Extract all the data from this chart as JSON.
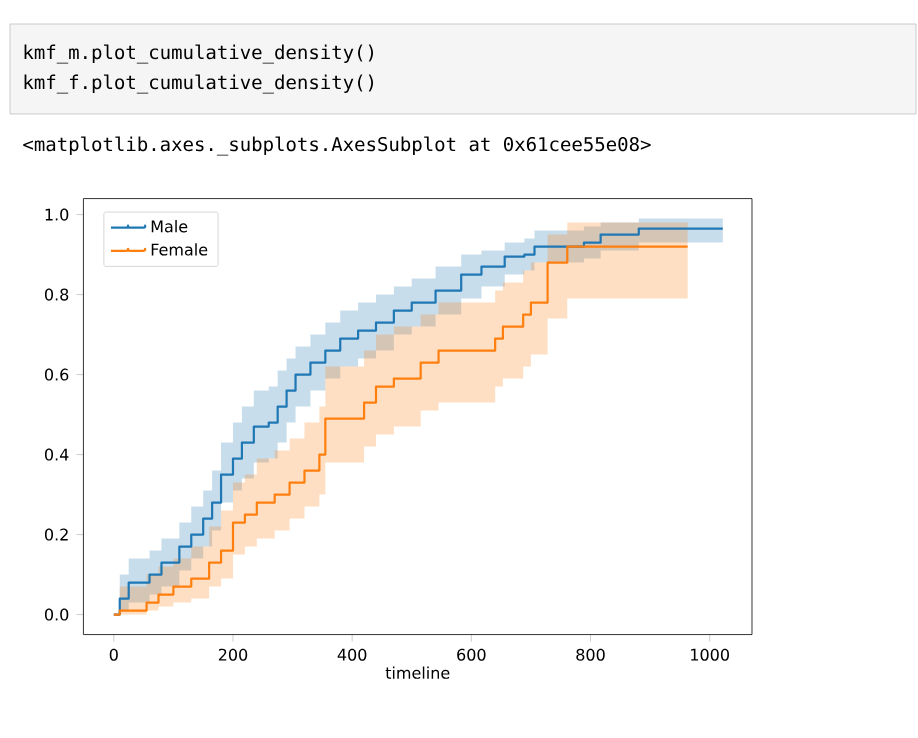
{
  "chart_data": {
    "type": "step",
    "xlabel": "timeline",
    "legend": "top left",
    "grid": false,
    "annotations": [
      "kmf_m.plot_cumulative_density()",
      "kmf_f.plot_cumulative_density()",
      "<matplotlib.axes._subplots.AxesSubplot at 0x61cee55e08>"
    ],
    "xlim": [
      -51,
      1071
    ],
    "ylim": [
      -0.05,
      1.04
    ],
    "xticks": [
      0,
      200,
      400,
      600,
      800,
      1000
    ],
    "yticks": [
      {
        "value": 0,
        "label": "0.0"
      },
      {
        "value": 0.2,
        "label": "0.2"
      },
      {
        "value": 0.4,
        "label": "0.4"
      },
      {
        "value": 0.6,
        "label": "0.6"
      },
      {
        "value": 0.8,
        "label": "0.8"
      },
      {
        "value": 1.0,
        "label": "1.0"
      }
    ],
    "series": [
      {
        "name": "Male",
        "color": "#1f77b4",
        "x": [
          0,
          10,
          25,
          60,
          80,
          110,
          130,
          150,
          165,
          180,
          200,
          215,
          235,
          260,
          275,
          290,
          305,
          330,
          355,
          380,
          410,
          440,
          470,
          500,
          540,
          583,
          617,
          656,
          689,
          706,
          789,
          817,
          881,
          1022
        ],
        "values": [
          0,
          0.04,
          0.08,
          0.1,
          0.13,
          0.17,
          0.2,
          0.24,
          0.28,
          0.35,
          0.39,
          0.43,
          0.47,
          0.48,
          0.52,
          0.56,
          0.6,
          0.63,
          0.66,
          0.69,
          0.71,
          0.73,
          0.76,
          0.78,
          0.81,
          0.85,
          0.87,
          0.895,
          0.9,
          0.92,
          0.93,
          0.95,
          0.965,
          0.965
        ],
        "upper": [
          0,
          0.1,
          0.14,
          0.16,
          0.19,
          0.23,
          0.27,
          0.31,
          0.36,
          0.43,
          0.48,
          0.52,
          0.56,
          0.57,
          0.61,
          0.64,
          0.67,
          0.7,
          0.73,
          0.76,
          0.78,
          0.8,
          0.82,
          0.84,
          0.87,
          0.9,
          0.91,
          0.93,
          0.94,
          0.96,
          0.97,
          0.98,
          0.99,
          0.99
        ],
        "lower": [
          0,
          0.01,
          0.03,
          0.05,
          0.07,
          0.11,
          0.14,
          0.17,
          0.21,
          0.28,
          0.31,
          0.34,
          0.38,
          0.39,
          0.43,
          0.48,
          0.52,
          0.56,
          0.59,
          0.62,
          0.64,
          0.66,
          0.7,
          0.72,
          0.75,
          0.79,
          0.82,
          0.85,
          0.86,
          0.88,
          0.89,
          0.91,
          0.93,
          0.93
        ]
      },
      {
        "name": "Female",
        "color": "#ff7f0e",
        "x": [
          0,
          10,
          55,
          75,
          100,
          130,
          160,
          180,
          200,
          220,
          240,
          270,
          295,
          320,
          345,
          355,
          420,
          440,
          470,
          515,
          545,
          640,
          653,
          687,
          700,
          728,
          761,
          963
        ],
        "values": [
          0,
          0.01,
          0.03,
          0.05,
          0.07,
          0.09,
          0.13,
          0.16,
          0.23,
          0.25,
          0.28,
          0.3,
          0.33,
          0.36,
          0.4,
          0.49,
          0.53,
          0.57,
          0.59,
          0.63,
          0.66,
          0.69,
          0.72,
          0.75,
          0.78,
          0.88,
          0.92,
          0.92
        ],
        "upper": [
          0,
          0.07,
          0.1,
          0.12,
          0.14,
          0.17,
          0.22,
          0.26,
          0.33,
          0.35,
          0.39,
          0.41,
          0.44,
          0.48,
          0.52,
          0.62,
          0.66,
          0.7,
          0.72,
          0.75,
          0.78,
          0.81,
          0.83,
          0.86,
          0.88,
          0.95,
          0.98,
          0.98
        ],
        "lower": [
          0,
          0.0,
          0.01,
          0.02,
          0.03,
          0.04,
          0.07,
          0.09,
          0.15,
          0.17,
          0.19,
          0.21,
          0.24,
          0.27,
          0.3,
          0.38,
          0.42,
          0.45,
          0.47,
          0.51,
          0.53,
          0.57,
          0.59,
          0.62,
          0.65,
          0.74,
          0.79,
          0.79
        ]
      }
    ]
  }
}
